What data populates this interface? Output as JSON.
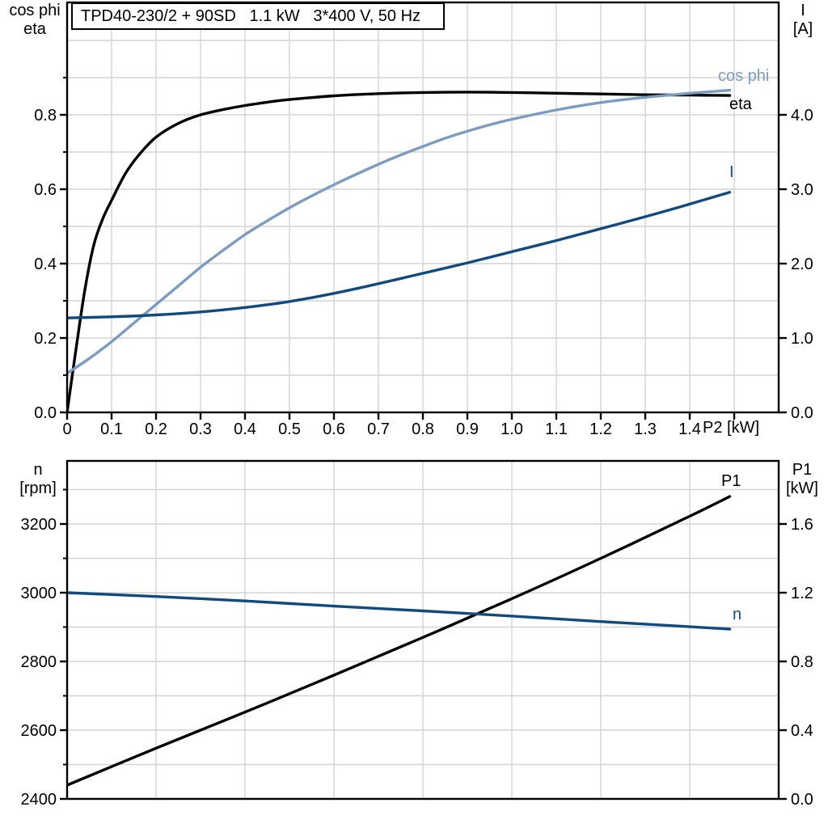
{
  "colors": {
    "black": "#000000",
    "light_blue": "#7b9bc2",
    "dark_blue": "#114a7e",
    "grid": "#d4d4d4",
    "axis": "#000000"
  },
  "chart_data": [
    {
      "type": "line",
      "title": "TPD40-230/2 + 90SD   1.1 kW   3*400 V, 50 Hz",
      "x_axis": {
        "label": "P2 [kW]",
        "range": [
          0,
          1.6
        ],
        "tick_values": [
          0,
          0.1,
          0.2,
          0.3,
          0.4,
          0.5,
          0.6,
          0.7,
          0.8,
          0.9,
          1.0,
          1.1,
          1.2,
          1.3,
          1.4,
          1.5
        ],
        "tick_labels": [
          "0",
          "0.1",
          "0.2",
          "0.3",
          "0.4",
          "0.5",
          "0.6",
          "0.7",
          "0.8",
          "0.9",
          "1.0",
          "1.1",
          "1.2",
          "1.3",
          "1.4",
          ""
        ],
        "gridlines": [
          0.1,
          0.2,
          0.3,
          0.4,
          0.5,
          0.6,
          0.7,
          0.8,
          0.9,
          1.0,
          1.1,
          1.2,
          1.3,
          1.4,
          1.5
        ]
      },
      "left_axis": {
        "title_lines": [
          "cos phi",
          "eta"
        ],
        "range": [
          0,
          1.1022
        ],
        "major_ticks": [
          0,
          0.2,
          0.4,
          0.6,
          0.8
        ],
        "major_labels": [
          "0.0",
          "0.2",
          "0.4",
          "0.6",
          "0.8"
        ],
        "minor_ticks": [
          0.1,
          0.3,
          0.5,
          0.7,
          0.9
        ],
        "gridlines": [
          0.1,
          0.2,
          0.3,
          0.4,
          0.5,
          0.6,
          0.7,
          0.8,
          0.9,
          1.0
        ]
      },
      "right_axis": {
        "title_lines": [
          "I",
          "[A]"
        ],
        "range": [
          0,
          5.511
        ],
        "major_ticks": [
          0,
          1,
          2,
          3,
          4
        ],
        "major_labels": [
          "0.0",
          "1.0",
          "2.0",
          "3.0",
          "4.0"
        ]
      },
      "series": [
        {
          "name": "eta",
          "label": "eta",
          "axis": "left",
          "color_key": "black",
          "points": [
            [
              0,
              0
            ],
            [
              0.02,
              0.17
            ],
            [
              0.04,
              0.33
            ],
            [
              0.06,
              0.45
            ],
            [
              0.08,
              0.52
            ],
            [
              0.1,
              0.57
            ],
            [
              0.13,
              0.64
            ],
            [
              0.16,
              0.69
            ],
            [
              0.2,
              0.74
            ],
            [
              0.25,
              0.777
            ],
            [
              0.3,
              0.8
            ],
            [
              0.35,
              0.814
            ],
            [
              0.4,
              0.825
            ],
            [
              0.45,
              0.834
            ],
            [
              0.5,
              0.841
            ],
            [
              0.6,
              0.851
            ],
            [
              0.7,
              0.857
            ],
            [
              0.8,
              0.86
            ],
            [
              0.9,
              0.861
            ],
            [
              1.0,
              0.86
            ],
            [
              1.1,
              0.858
            ],
            [
              1.2,
              0.856
            ],
            [
              1.3,
              0.854
            ],
            [
              1.4,
              0.853
            ],
            [
              1.49,
              0.852
            ]
          ]
        },
        {
          "name": "cos_phi",
          "label": "cos phi",
          "axis": "left",
          "color_key": "light_blue",
          "points": [
            [
              0,
              0.105
            ],
            [
              0.05,
              0.145
            ],
            [
              0.1,
              0.19
            ],
            [
              0.15,
              0.24
            ],
            [
              0.2,
              0.29
            ],
            [
              0.25,
              0.34
            ],
            [
              0.3,
              0.39
            ],
            [
              0.35,
              0.435
            ],
            [
              0.4,
              0.478
            ],
            [
              0.45,
              0.515
            ],
            [
              0.5,
              0.55
            ],
            [
              0.55,
              0.582
            ],
            [
              0.6,
              0.612
            ],
            [
              0.65,
              0.64
            ],
            [
              0.7,
              0.667
            ],
            [
              0.75,
              0.692
            ],
            [
              0.8,
              0.715
            ],
            [
              0.85,
              0.737
            ],
            [
              0.9,
              0.756
            ],
            [
              0.95,
              0.773
            ],
            [
              1.0,
              0.788
            ],
            [
              1.1,
              0.813
            ],
            [
              1.2,
              0.833
            ],
            [
              1.3,
              0.847
            ],
            [
              1.4,
              0.858
            ],
            [
              1.49,
              0.866
            ]
          ]
        },
        {
          "name": "I",
          "label": "I",
          "axis": "right",
          "color_key": "dark_blue",
          "points": [
            [
              0,
              1.27
            ],
            [
              0.1,
              1.285
            ],
            [
              0.2,
              1.31
            ],
            [
              0.3,
              1.35
            ],
            [
              0.4,
              1.41
            ],
            [
              0.5,
              1.49
            ],
            [
              0.6,
              1.6
            ],
            [
              0.7,
              1.73
            ],
            [
              0.8,
              1.87
            ],
            [
              0.9,
              2.01
            ],
            [
              1.0,
              2.16
            ],
            [
              1.1,
              2.31
            ],
            [
              1.2,
              2.47
            ],
            [
              1.3,
              2.63
            ],
            [
              1.4,
              2.8
            ],
            [
              1.49,
              2.96
            ]
          ]
        }
      ]
    },
    {
      "type": "line",
      "title": "",
      "x_axis": {
        "label": "",
        "range": [
          0,
          1.6
        ],
        "tick_values": [],
        "tick_labels": [],
        "gridlines": [
          0.2,
          0.4,
          0.6,
          0.8,
          1.0,
          1.2,
          1.4
        ]
      },
      "left_axis": {
        "title_lines": [
          "n",
          "[rpm]"
        ],
        "range": [
          2400,
          3383.5
        ],
        "major_ticks": [
          2400,
          2600,
          2800,
          3000,
          3200
        ],
        "major_labels": [
          "2400",
          "2600",
          "2800",
          "3000",
          "3200"
        ],
        "minor_ticks": [
          2500,
          2700,
          2900,
          3100,
          3300
        ],
        "gridlines": [
          2500,
          2600,
          2700,
          2800,
          2900,
          3000,
          3100,
          3200,
          3300
        ]
      },
      "right_axis": {
        "title_lines": [
          "P1",
          "[kW]"
        ],
        "range": [
          0,
          1.9671
        ],
        "major_ticks": [
          0,
          0.4,
          0.8,
          1.2,
          1.6
        ],
        "major_labels": [
          "0.0",
          "0.4",
          "0.8",
          "1.2",
          "1.6"
        ]
      },
      "series": [
        {
          "name": "P1",
          "label": "P1",
          "axis": "right",
          "color_key": "black",
          "points": [
            [
              0,
              0.08
            ],
            [
              0.2,
              0.295
            ],
            [
              0.4,
              0.505
            ],
            [
              0.6,
              0.72
            ],
            [
              0.8,
              0.94
            ],
            [
              1.0,
              1.165
            ],
            [
              1.2,
              1.4
            ],
            [
              1.4,
              1.645
            ],
            [
              1.49,
              1.76
            ]
          ]
        },
        {
          "name": "n",
          "label": "n",
          "axis": "left",
          "color_key": "dark_blue",
          "points": [
            [
              0,
              3000
            ],
            [
              0.2,
              2989
            ],
            [
              0.4,
              2976
            ],
            [
              0.6,
              2961
            ],
            [
              0.8,
              2947
            ],
            [
              1.0,
              2932
            ],
            [
              1.2,
              2916
            ],
            [
              1.4,
              2901
            ],
            [
              1.49,
              2894
            ]
          ]
        }
      ]
    }
  ]
}
